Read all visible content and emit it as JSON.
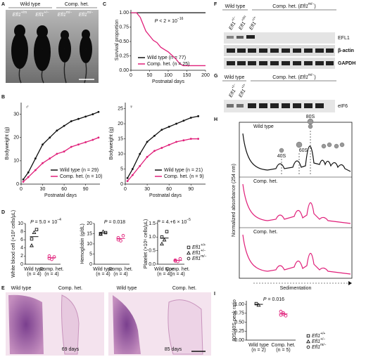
{
  "panel_letters": [
    "A",
    "B",
    "C",
    "D",
    "E",
    "F",
    "G",
    "H",
    "I"
  ],
  "panel_a": {
    "groups": [
      "Wild type",
      "Comp. het."
    ],
    "genotypes": [
      {
        "gene": "Efl1",
        "allele": "+/m"
      },
      {
        "gene": "Efl1",
        "allele": "+/−"
      },
      {
        "gene": "Efl1",
        "allele": "m/−"
      },
      {
        "gene": "Efl1",
        "allele": "m/−"
      }
    ],
    "sex": [
      "♂",
      "♀",
      "♀",
      "♂"
    ]
  },
  "panel_c": {
    "type": "line",
    "xlabel": "Postnatal days",
    "ylabel": "Survival proportion",
    "annotation": {
      "italic": "P",
      "prefix": " < 2 × 10",
      "sup": "−16"
    },
    "xlim": [
      0,
      200
    ],
    "xticks": [
      0,
      50,
      100,
      150,
      200
    ],
    "ylim": [
      0,
      1.05
    ],
    "yticks": [
      {
        "value": 0,
        "label": "0.00"
      },
      {
        "value": 0.25,
        "label": "0.25"
      },
      {
        "value": 0.5,
        "label": "0.50"
      },
      {
        "value": 0.75,
        "label": "0.75"
      },
      {
        "value": 1,
        "label": "1.00"
      }
    ],
    "series": [
      {
        "name": "Wild type (n = 77)",
        "color": "#111111",
        "x": [
          0,
          200
        ],
        "y": [
          1,
          1
        ]
      },
      {
        "name": "Comp. het. (n = 25)",
        "color": "#e0207a",
        "x": [
          0,
          15,
          20,
          25,
          30,
          35,
          40,
          50,
          60,
          70,
          80,
          90,
          100,
          120,
          130,
          140,
          200
        ],
        "y": [
          1,
          1,
          0.96,
          0.92,
          0.84,
          0.76,
          0.68,
          0.6,
          0.52,
          0.48,
          0.4,
          0.36,
          0.32,
          0.2,
          0.12,
          0.08,
          0.08
        ]
      }
    ]
  },
  "panel_b": [
    {
      "type": "line",
      "sex": "♂",
      "xlabel": "Postnatal days",
      "ylabel": "Bodyweight (g)",
      "xlim": [
        0,
        110
      ],
      "xticks": [
        0,
        30,
        60,
        90
      ],
      "ylim": [
        0,
        35
      ],
      "yticks": [
        0,
        10,
        20,
        30
      ],
      "series": [
        {
          "name": "Wild type (n = 29)",
          "color": "#111111",
          "x": [
            3,
            10,
            20,
            30,
            40,
            50,
            60,
            70,
            80,
            90,
            100,
            108
          ],
          "y": [
            2,
            5,
            11,
            17,
            20,
            23,
            25,
            27,
            28,
            29,
            30,
            31
          ]
        },
        {
          "name": "Comp. het. (n = 10)",
          "color": "#e0207a",
          "x": [
            3,
            10,
            20,
            30,
            40,
            50,
            60,
            70,
            80,
            90,
            100,
            108
          ],
          "y": [
            1,
            3,
            6,
            9,
            11,
            13,
            14,
            16,
            17,
            18,
            19,
            20
          ]
        }
      ]
    },
    {
      "type": "line",
      "sex": "♀",
      "xlabel": "Postnatal days",
      "ylabel": "Bodyweight (g)",
      "xlim": [
        0,
        110
      ],
      "xticks": [
        0,
        30,
        60,
        90
      ],
      "ylim": [
        0,
        27
      ],
      "yticks": [
        0,
        5,
        10,
        15,
        20,
        25
      ],
      "series": [
        {
          "name": "Wild type (n = 21)",
          "color": "#111111",
          "x": [
            3,
            10,
            20,
            30,
            40,
            50,
            60,
            70,
            80,
            90,
            100
          ],
          "y": [
            2,
            5,
            10,
            14,
            16,
            18,
            19,
            20,
            21,
            22,
            22.5
          ]
        },
        {
          "name": "Comp. het. (n = 9)",
          "color": "#e0207a",
          "x": [
            3,
            10,
            20,
            30,
            40,
            50,
            60,
            70,
            80,
            90,
            100
          ],
          "y": [
            1,
            3,
            6,
            9,
            11,
            12,
            13,
            14,
            14.5,
            15,
            15
          ]
        }
      ]
    }
  ],
  "panel_d": {
    "categories": [
      "Wild type",
      "Comp. het."
    ],
    "n": [
      "(n = 4)",
      "(n = 4)"
    ],
    "plots": [
      {
        "type": "scatter",
        "ylabel": "White blood cell (×10³ cells/μL)",
        "annotation": {
          "italic": "P",
          "prefix": " = 5.0 × 10",
          "sup": "−4"
        },
        "ylim": [
          0,
          10
        ],
        "yticks": [
          0,
          2,
          4,
          6,
          8,
          10
        ],
        "values": [
          [
            6.2,
            7.8,
            8.5,
            4.6
          ],
          [
            2.0,
            1.2,
            1.8,
            1.4
          ]
        ]
      },
      {
        "type": "scatter",
        "ylabel": "Hemoglobin (g/dL)",
        "annotation": {
          "italic": "P",
          "prefix": " = 0.018"
        },
        "ylim": [
          0,
          20
        ],
        "yticks": [
          0,
          5,
          10,
          15,
          20
        ],
        "values": [
          [
            15,
            16,
            15.5,
            14.8
          ],
          [
            13,
            11.5,
            14,
            12
          ]
        ]
      },
      {
        "type": "scatter",
        "ylabel": "Platelet (×10⁶ cells/μL)",
        "annotation": {
          "italic": "P",
          "prefix": " = 4.+6 × 10",
          "sup": "−5"
        },
        "ylim": [
          0,
          1.5
        ],
        "yticks": [
          {
            "value": 0,
            "label": "0.0"
          },
          {
            "value": 0.5,
            "label": "0.5"
          },
          {
            "value": 1,
            "label": "1.0"
          },
          {
            "value": 1.5,
            "label": "1.5"
          }
        ],
        "values": [
          [
            1.0,
            0.9,
            1.2,
            0.75
          ],
          [
            0.15,
            0.1,
            0.2,
            0.12
          ]
        ]
      }
    ],
    "legend": [
      {
        "gene": "Efl1",
        "allele": "+/+"
      },
      {
        "gene": "Efl1",
        "allele": "+/−"
      },
      {
        "gene": "Efl1",
        "allele": "m/−"
      }
    ]
  },
  "panel_e": {
    "labels": [
      "Wild type",
      "Comp. het.",
      "Wild type",
      "Comp. het."
    ],
    "days": [
      "69 days",
      "85 days"
    ]
  },
  "panel_f": {
    "headers": [
      {
        "prefix": "Wild type"
      },
      {
        "prefix": "Comp. het. (",
        "gene": "Efl1",
        "allele": "m/−",
        "suffix": ")"
      }
    ],
    "lanes": [
      {
        "gene": "Efl1",
        "allele": "+/−"
      },
      {
        "gene": "Efl1",
        "allele": "+/m"
      },
      {
        "gene": "Efl1",
        "allele": "+/+"
      }
    ],
    "bands": [
      "EFL1",
      "β-actin",
      "GAPDH"
    ]
  },
  "panel_g": {
    "headers": [
      {
        "prefix": "Wild type"
      },
      {
        "prefix": "Comp. het. (",
        "gene": "Efl1",
        "allele": "m/−",
        "suffix": ")"
      }
    ],
    "lanes": [
      {
        "gene": "Efl1",
        "allele": "+/−"
      },
      {
        "gene": "Efl1",
        "allele": "+/+"
      }
    ],
    "bands": [
      "eIF6"
    ]
  },
  "panel_h": {
    "profiles": [
      "Wild type",
      "Comp. het.",
      "Comp. het."
    ],
    "peaks": [
      "40S",
      "60S",
      "80S"
    ],
    "ylabel": "Normalized absorbance (254 nm)",
    "xlabel": "Sedimentation"
  },
  "panel_i": {
    "type": "scatter",
    "ylabel": "80S/40S peak ratio",
    "annotation": {
      "italic": "P",
      "prefix": " = 0.016"
    },
    "categories": [
      "Wild type",
      "Comp. het."
    ],
    "n": [
      "(n = 2)",
      "(n = 5)"
    ],
    "ylim": [
      0,
      1.1
    ],
    "yticks": [
      {
        "value": 0,
        "label": "0.00"
      },
      {
        "value": 0.25,
        "label": "0.25"
      },
      {
        "value": 0.5,
        "label": "0.50"
      },
      {
        "value": 0.75,
        "label": "0.75"
      },
      {
        "value": 1,
        "label": "1.00"
      }
    ],
    "values": [
      [
        1.02,
        0.98
      ],
      [
        0.8,
        0.72,
        0.68,
        0.7,
        0.76
      ]
    ],
    "legend": [
      {
        "gene": "Efl1",
        "allele": "+/+"
      },
      {
        "gene": "Efl1",
        "allele": "+/−"
      },
      {
        "gene": "Efl1",
        "allele": "m/−"
      }
    ]
  }
}
